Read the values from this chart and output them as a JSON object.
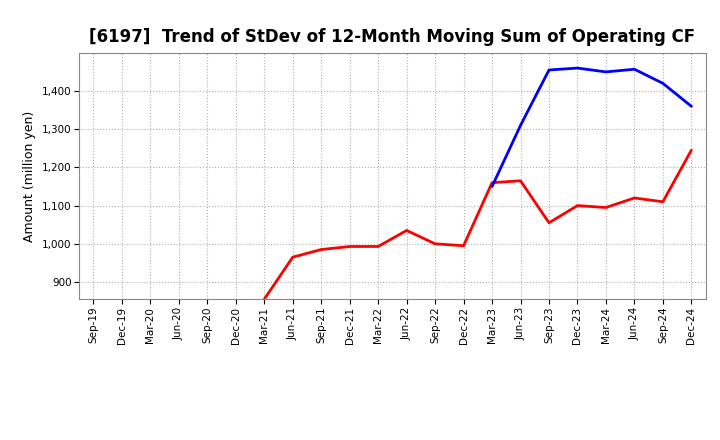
{
  "title": "[6197]  Trend of StDev of 12-Month Moving Sum of Operating CF",
  "ylabel": "Amount (million yen)",
  "background_color": "#ffffff",
  "plot_bg_color": "#ffffff",
  "grid_color": "#b0b0b0",
  "ylim": [
    855,
    1500
  ],
  "yticks": [
    900,
    1000,
    1100,
    1200,
    1300,
    1400
  ],
  "series": {
    "3 Years": {
      "color": "#ff0000",
      "x": [
        "Mar-21",
        "Jun-21",
        "Sep-21",
        "Dec-21",
        "Mar-22",
        "Jun-22",
        "Sep-22",
        "Dec-22",
        "Mar-23",
        "Jun-23",
        "Sep-23",
        "Dec-23",
        "Mar-24",
        "Jun-24",
        "Sep-24",
        "Dec-24"
      ],
      "y": [
        855,
        965,
        985,
        993,
        993,
        1035,
        1000,
        995,
        1160,
        1165,
        1055,
        1100,
        1095,
        1120,
        1110,
        1245
      ]
    },
    "5 Years": {
      "color": "#0000ff",
      "x": [
        "Mar-23",
        "Jun-23",
        "Sep-23",
        "Dec-23",
        "Mar-24",
        "Jun-24",
        "Sep-24",
        "Dec-24"
      ],
      "y": [
        1150,
        1310,
        1455,
        1460,
        1450,
        1457,
        1420,
        1360
      ]
    },
    "7 Years": {
      "color": "#00cccc",
      "x": [],
      "y": []
    },
    "10 Years": {
      "color": "#008800",
      "x": [],
      "y": []
    }
  },
  "x_tick_labels": [
    "Sep-19",
    "Dec-19",
    "Mar-20",
    "Jun-20",
    "Sep-20",
    "Dec-20",
    "Mar-21",
    "Jun-21",
    "Sep-21",
    "Dec-21",
    "Mar-22",
    "Jun-22",
    "Sep-22",
    "Dec-22",
    "Mar-23",
    "Jun-23",
    "Sep-23",
    "Dec-23",
    "Mar-24",
    "Jun-24",
    "Sep-24",
    "Dec-24"
  ],
  "title_fontsize": 12,
  "axis_label_fontsize": 9,
  "tick_fontsize": 7.5,
  "legend_fontsize": 9,
  "line_width": 2.0
}
